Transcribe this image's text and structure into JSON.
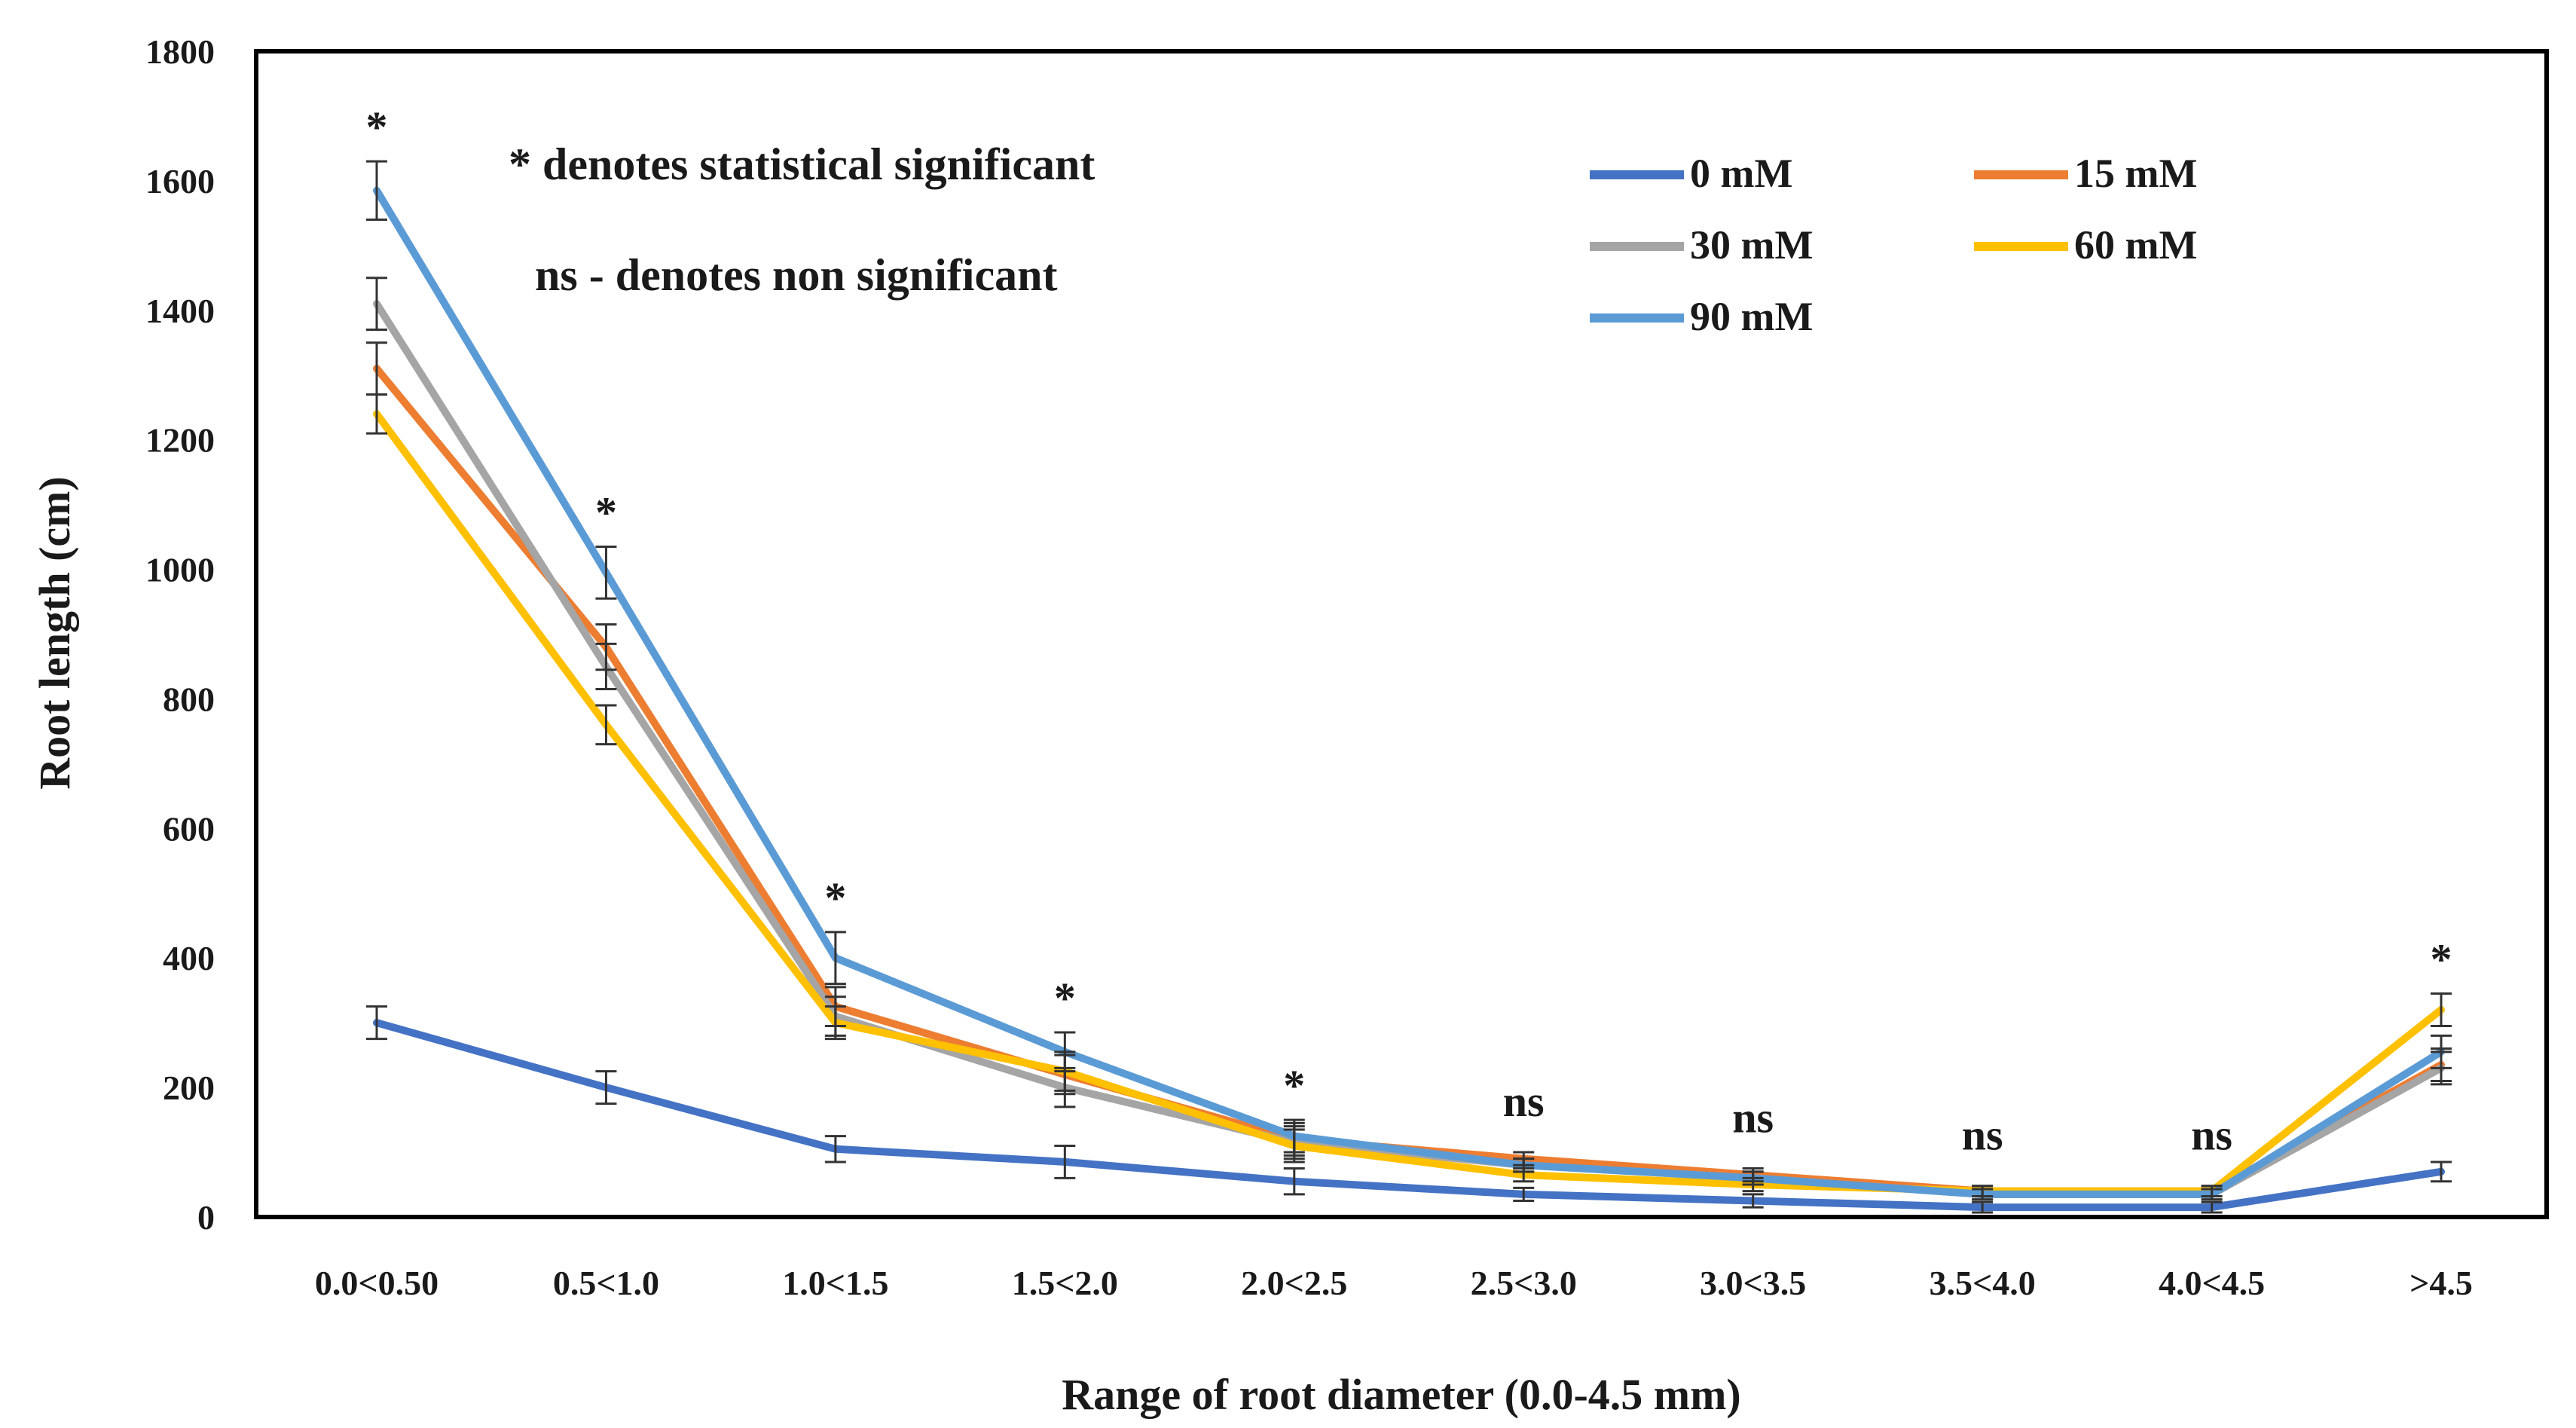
{
  "chart_data": {
    "type": "line",
    "title": "",
    "xlabel": "Range of root diameter (0.0-4.5 mm)",
    "ylabel": "Root length (cm)",
    "ylim": [
      0,
      1800
    ],
    "yticks": [
      0,
      200,
      400,
      600,
      800,
      1000,
      1200,
      1400,
      1600,
      1800
    ],
    "categories": [
      "0.0<0.50",
      "0.5<1.0",
      "1.0<1.5",
      "1.5<2.0",
      "2.0<2.5",
      "2.5<3.0",
      "3.0<3.5",
      "3.5<4.0",
      "4.0<4.5",
      ">4.5"
    ],
    "significance": [
      "*",
      "*",
      "*",
      "*",
      "*",
      "ns",
      "ns",
      "ns",
      "ns",
      "*"
    ],
    "notes": [
      "* denotes statistical significant",
      "ns - denotes non significant"
    ],
    "legend_position": "top-right",
    "grid": false,
    "series": [
      {
        "name": "0 mM",
        "color": "#4472C4",
        "values": [
          300,
          200,
          105,
          85,
          55,
          35,
          25,
          15,
          15,
          70
        ],
        "errors": [
          25,
          25,
          20,
          25,
          20,
          10,
          10,
          8,
          8,
          15
        ]
      },
      {
        "name": "15 mM",
        "color": "#ED7D31",
        "values": [
          1310,
          880,
          325,
          220,
          120,
          90,
          65,
          40,
          40,
          235
        ],
        "errors": [
          40,
          35,
          30,
          30,
          25,
          10,
          10,
          8,
          8,
          25
        ]
      },
      {
        "name": "30 mM",
        "color": "#A5A5A5",
        "values": [
          1410,
          850,
          310,
          200,
          115,
          80,
          60,
          35,
          35,
          230
        ],
        "errors": [
          40,
          35,
          30,
          30,
          25,
          10,
          10,
          8,
          8,
          25
        ]
      },
      {
        "name": "60 mM",
        "color": "#FFC000",
        "values": [
          1240,
          760,
          300,
          225,
          110,
          65,
          50,
          40,
          40,
          320
        ],
        "errors": [
          30,
          30,
          25,
          30,
          25,
          10,
          10,
          8,
          8,
          25
        ]
      },
      {
        "name": "90 mM",
        "color": "#5B9BD5",
        "values": [
          1585,
          995,
          400,
          255,
          125,
          80,
          60,
          35,
          35,
          255
        ],
        "errors": [
          45,
          40,
          40,
          30,
          25,
          10,
          10,
          8,
          8,
          25
        ]
      }
    ]
  }
}
